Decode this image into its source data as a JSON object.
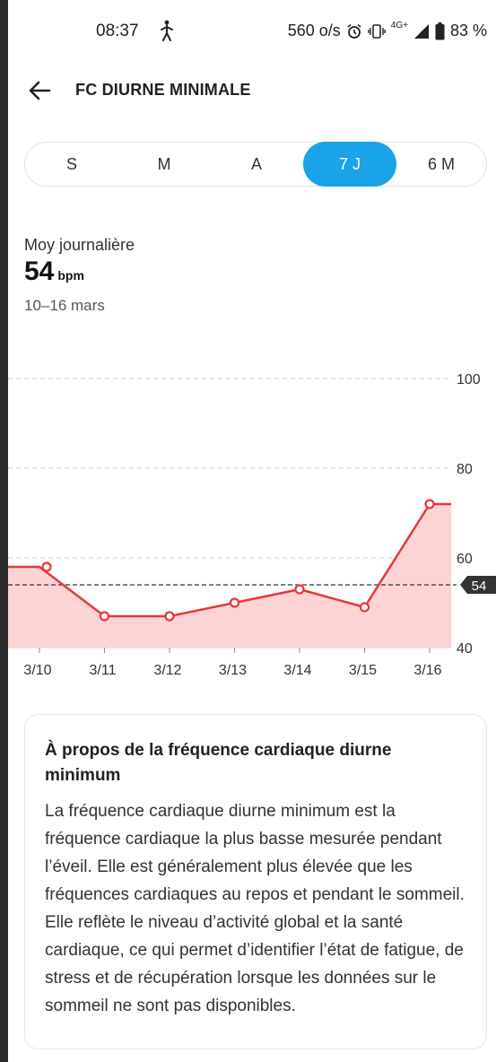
{
  "status_bar": {
    "time": "08:37",
    "data_rate": "560 o/s",
    "network": "4G+",
    "battery": "83 %"
  },
  "header": {
    "title": "FC DIURNE MINIMALE"
  },
  "tabs": [
    {
      "label": "S",
      "active": false
    },
    {
      "label": "M",
      "active": false
    },
    {
      "label": "A",
      "active": false
    },
    {
      "label": "7 J",
      "active": true
    },
    {
      "label": "6 M",
      "active": false
    }
  ],
  "summary": {
    "label": "Moy journalière",
    "value": "54",
    "unit": "bpm",
    "range": "10–16 mars"
  },
  "chart_data": {
    "type": "area",
    "x": [
      "3/10",
      "3/11",
      "3/12",
      "3/13",
      "3/14",
      "3/15",
      "3/16"
    ],
    "series": [
      {
        "values": [
          58,
          47,
          47,
          50,
          53,
          49,
          72
        ]
      }
    ],
    "average": 54,
    "average_label": "54",
    "ylim": [
      40,
      100
    ],
    "yticks": [
      "40",
      "60",
      "80",
      "100"
    ],
    "grid": true,
    "colors": {
      "line": "#e8373a",
      "fill": "#fdd4d4",
      "grid": "#cccccc",
      "average": "#333333"
    }
  },
  "info_card": {
    "title": "À propos de la fréquence cardiaque diurne minimum",
    "body": "La fréquence cardiaque diurne minimum est la fréquence cardiaque la plus basse mesurée pendant l’éveil. Elle est généralement plus élevée que les fréquences cardiaques au repos et pendant le sommeil. Elle reflète le niveau d’activité global et la santé cardiaque, ce qui permet d’identifier l’état de fatigue, de stress et de récupération lorsque les données sur le sommeil ne sont pas disponibles."
  },
  "colors": {
    "accent": "#1aa3e8"
  }
}
